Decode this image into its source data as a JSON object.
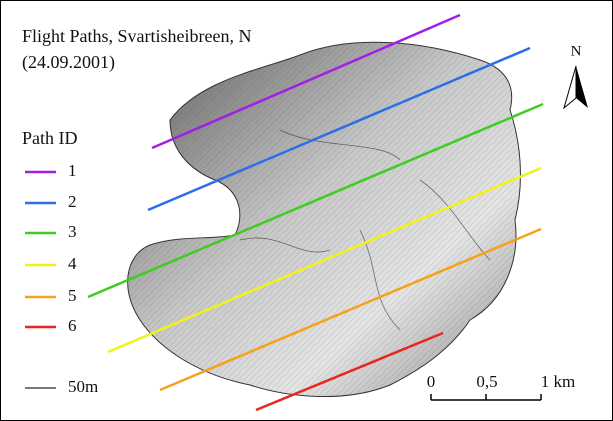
{
  "map": {
    "title": [
      "Flight Paths, Svartisheibreen, N",
      "(24.09.2001)"
    ],
    "north": "N",
    "legend": {
      "title": "Path ID",
      "items": [
        {
          "label": "1",
          "color": "#a11ee6"
        },
        {
          "label": "2",
          "color": "#2a6fe8"
        },
        {
          "label": "3",
          "color": "#3fcc22"
        },
        {
          "label": "4",
          "color": "#f2f21a"
        },
        {
          "label": "5",
          "color": "#f5a21a"
        },
        {
          "label": "6",
          "color": "#e6261f"
        }
      ],
      "contour": {
        "label": "50m",
        "color": "#7a7a7a"
      }
    },
    "scale": {
      "labels": [
        "0",
        "0,5",
        "1 km"
      ]
    }
  }
}
